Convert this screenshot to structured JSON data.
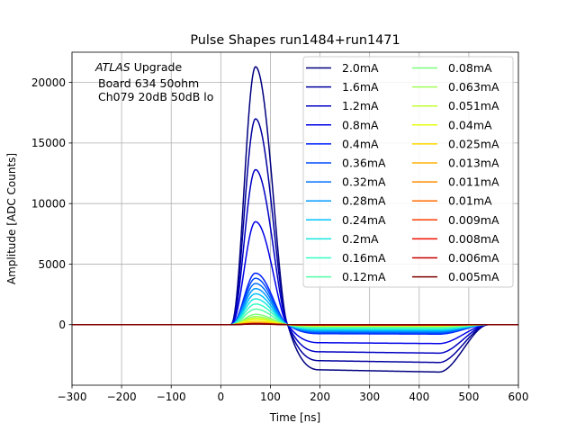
{
  "chart_data": {
    "type": "line",
    "title": "Pulse Shapes run1484+run1471",
    "xlabel": "Time [ns]",
    "ylabel": "Amplitude [ADC Counts]",
    "xlim": [
      -300,
      600
    ],
    "ylim": [
      -5000,
      22500
    ],
    "xticks": [
      -300,
      -200,
      -100,
      0,
      100,
      200,
      300,
      400,
      500,
      600
    ],
    "xtick_labels": [
      "−300",
      "−200",
      "−100",
      "0",
      "100",
      "200",
      "300",
      "400",
      "500",
      "600"
    ],
    "yticks": [
      0,
      5000,
      10000,
      15000,
      20000
    ],
    "ytick_labels": [
      "0",
      "5000",
      "10000",
      "15000",
      "20000"
    ],
    "grid": true,
    "legend_location": "upper-right",
    "legend_columns": 2,
    "annotation": {
      "experiment": "ATLAS",
      "experiment_suffix": " Upgrade",
      "line2": "Board 634 50ohm",
      "line3": "Ch079 20dB 50dB  lo"
    },
    "pulse_shape": {
      "baseline_until_ns": 20,
      "peak_time_ns": 70,
      "zero_cross_ns": 135,
      "undershoot_flat_from_ns": 200,
      "undershoot_flat_to_ns": 440,
      "return_to_zero_ns": 540,
      "undershoot_to_peak_ratio": 0.175
    },
    "series": [
      {
        "name": "2.0mA",
        "peak": 21300,
        "color": "#00007f"
      },
      {
        "name": "1.6mA",
        "peak": 17000,
        "color": "#00009f"
      },
      {
        "name": "1.2mA",
        "peak": 12800,
        "color": "#0000c4"
      },
      {
        "name": "0.8mA",
        "peak": 8500,
        "color": "#0000e8"
      },
      {
        "name": "0.4mA",
        "peak": 4250,
        "color": "#0020ff"
      },
      {
        "name": "0.36mA",
        "peak": 3830,
        "color": "#0048ff"
      },
      {
        "name": "0.32mA",
        "peak": 3400,
        "color": "#0070ff"
      },
      {
        "name": "0.28mA",
        "peak": 2980,
        "color": "#0098ff"
      },
      {
        "name": "0.24mA",
        "peak": 2550,
        "color": "#00c0ff"
      },
      {
        "name": "0.2mA",
        "peak": 2130,
        "color": "#16e6e0"
      },
      {
        "name": "0.16mA",
        "peak": 1700,
        "color": "#33ffc3"
      },
      {
        "name": "0.12mA",
        "peak": 1280,
        "color": "#50ffa6"
      },
      {
        "name": "0.08mA",
        "peak": 850,
        "color": "#7dff7a"
      },
      {
        "name": "0.063mA",
        "peak": 670,
        "color": "#a0ff56"
      },
      {
        "name": "0.051mA",
        "peak": 540,
        "color": "#c3ff33"
      },
      {
        "name": "0.04mA",
        "peak": 430,
        "color": "#e6ff10"
      },
      {
        "name": "0.025mA",
        "peak": 270,
        "color": "#ffd700"
      },
      {
        "name": "0.013mA",
        "peak": 140,
        "color": "#ffb200"
      },
      {
        "name": "0.011mA",
        "peak": 120,
        "color": "#ff8c00"
      },
      {
        "name": "0.01mA",
        "peak": 105,
        "color": "#ff6a00"
      },
      {
        "name": "0.009mA",
        "peak": 95,
        "color": "#ff3b00"
      },
      {
        "name": "0.008mA",
        "peak": 85,
        "color": "#f00d00"
      },
      {
        "name": "0.006mA",
        "peak": 65,
        "color": "#c80000"
      },
      {
        "name": "0.005mA",
        "peak": 55,
        "color": "#7f0000"
      }
    ]
  }
}
